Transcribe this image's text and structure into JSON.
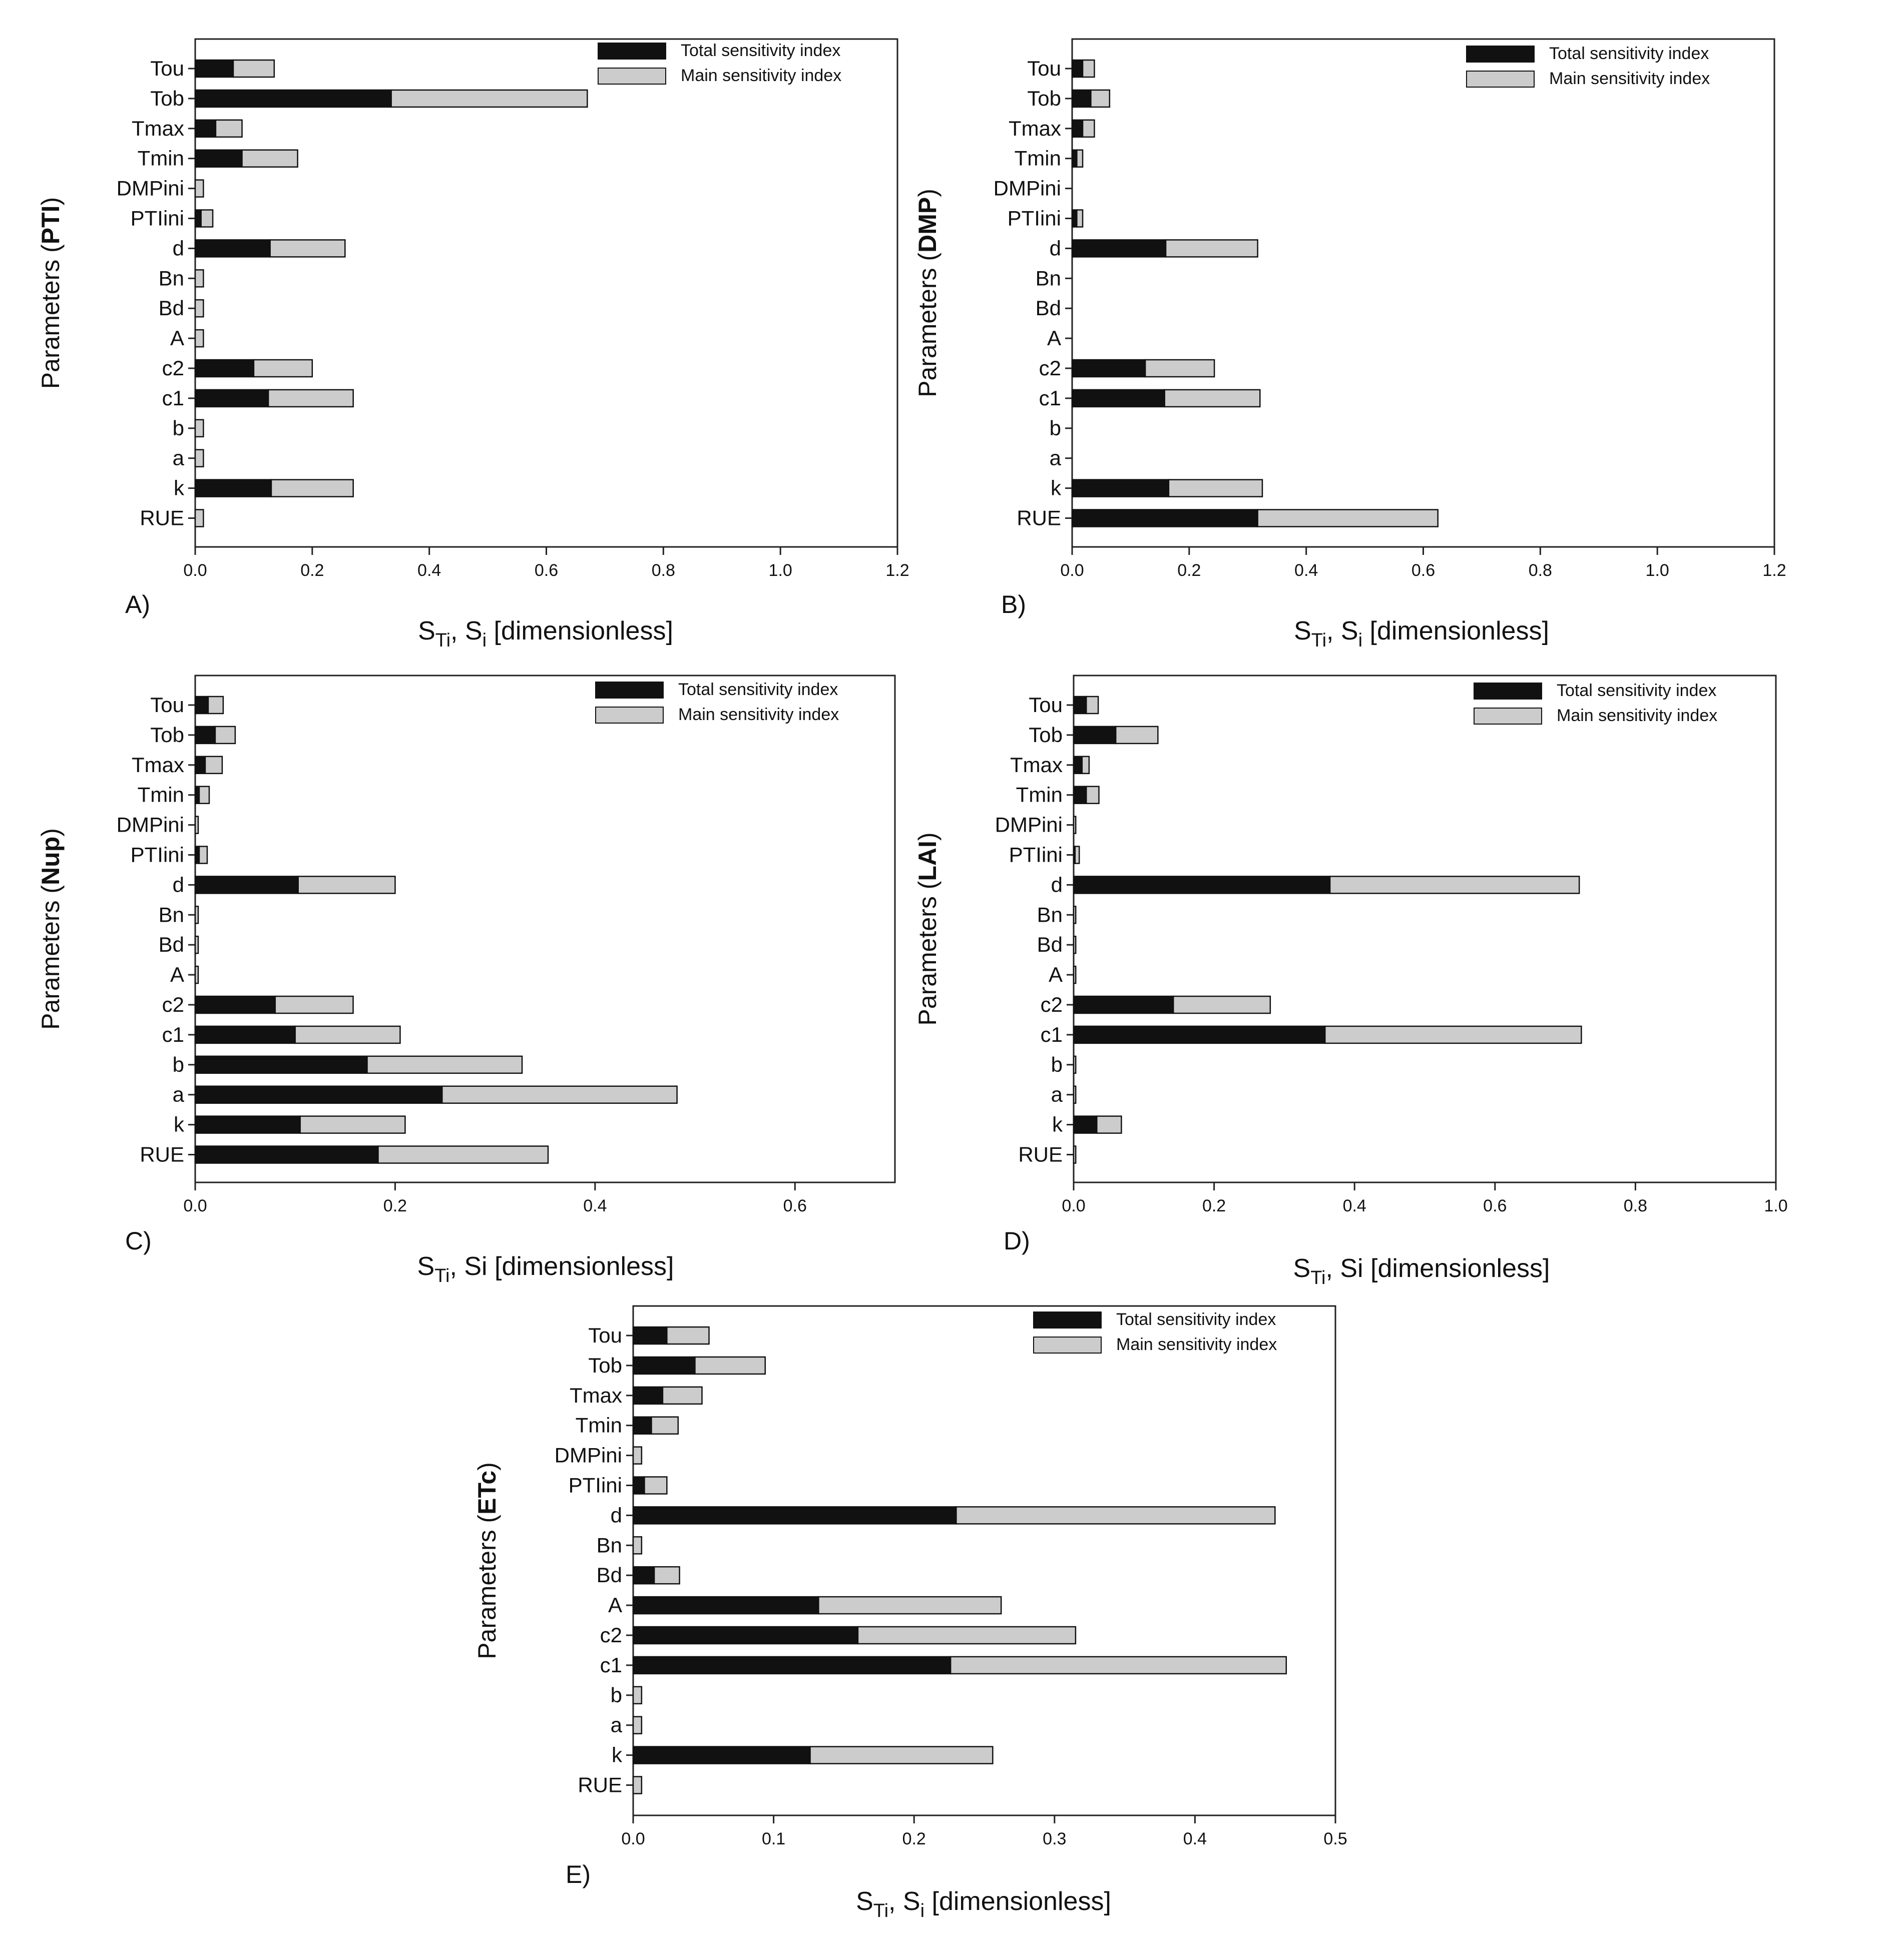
{
  "colors": {
    "total": "#111111",
    "main": "#cccccc",
    "frame": "#222222"
  },
  "legend": {
    "total": "Total sensitivity index",
    "main": "Main sensitivity index"
  },
  "chart_data": [
    {
      "type": "bar",
      "orientation": "horizontal",
      "stacked": true,
      "panel_label": "A)",
      "ylabel_prefix": "Parameters (",
      "ylabel_bold": "PTI",
      "ylabel_suffix": ")",
      "xlabel": {
        "main": "S",
        "sub1": "Ti",
        "mid": ", S",
        "sub2": "i",
        "rest": " [dimensionless]"
      },
      "xlim": [
        0,
        1.2
      ],
      "xticks": [
        "0.0",
        "0.2",
        "0.4",
        "0.6",
        "0.8",
        "1.0",
        "1.2"
      ],
      "xtick_values": [
        0,
        0.2,
        0.4,
        0.6,
        0.8,
        1.0,
        1.2
      ],
      "categories": [
        "Tou",
        "Tob",
        "Tmax",
        "Tmin",
        "DMPini",
        "PTIini",
        "d",
        "Bn",
        "Bd",
        "A",
        "c2",
        "c1",
        "b",
        "a",
        "k",
        "RUE"
      ],
      "series": [
        {
          "name": "Total sensitivity index",
          "values": [
            0.065,
            0.335,
            0.035,
            0.08,
            0.0,
            0.01,
            0.128,
            0.0,
            0.0,
            0.0,
            0.1,
            0.125,
            0.0,
            0.0,
            0.13,
            0.0
          ]
        },
        {
          "name": "Main sensitivity index",
          "values": [
            0.07,
            0.335,
            0.045,
            0.095,
            0.014,
            0.02,
            0.128,
            0.014,
            0.014,
            0.014,
            0.1,
            0.145,
            0.014,
            0.014,
            0.14,
            0.014
          ]
        }
      ]
    },
    {
      "type": "bar",
      "orientation": "horizontal",
      "stacked": true,
      "panel_label": "B)",
      "ylabel_prefix": "Parameters (",
      "ylabel_bold": "DMP",
      "ylabel_suffix": ")",
      "xlabel": {
        "main": "S",
        "sub1": "Ti",
        "mid": ", S",
        "sub2": "i",
        "rest": " [dimensionless]"
      },
      "xlim": [
        0,
        1.2
      ],
      "xticks": [
        "0.0",
        "0.2",
        "0.4",
        "0.6",
        "0.8",
        "1.0",
        "1.2"
      ],
      "xtick_values": [
        0,
        0.2,
        0.4,
        0.6,
        0.8,
        1.0,
        1.2
      ],
      "categories": [
        "Tou",
        "Tob",
        "Tmax",
        "Tmin",
        "DMPini",
        "PTIini",
        "d",
        "Bn",
        "Bd",
        "A",
        "c2",
        "c1",
        "b",
        "a",
        "k",
        "RUE"
      ],
      "series": [
        {
          "name": "Total sensitivity index",
          "values": [
            0.018,
            0.032,
            0.018,
            0.008,
            0.0,
            0.008,
            0.16,
            0.0,
            0.0,
            0.0,
            0.125,
            0.158,
            0.0,
            0.0,
            0.165,
            0.317
          ]
        },
        {
          "name": "Main sensitivity index",
          "values": [
            0.02,
            0.032,
            0.02,
            0.01,
            0.0,
            0.01,
            0.157,
            0.0,
            0.0,
            0.0,
            0.118,
            0.163,
            0.0,
            0.0,
            0.16,
            0.308
          ]
        }
      ]
    },
    {
      "type": "bar",
      "orientation": "horizontal",
      "stacked": true,
      "panel_label": "C)",
      "ylabel_prefix": "Parameters (",
      "ylabel_bold": "Nup",
      "ylabel_suffix": ")",
      "xlabel": {
        "main": "S",
        "sub1": "Ti",
        "mid": ", Si",
        "sub2": "",
        "rest": " [dimensionless]"
      },
      "xlim": [
        0,
        0.7
      ],
      "xticks": [
        "0.0",
        "0.2",
        "0.4",
        "0.6"
      ],
      "xtick_values": [
        0,
        0.2,
        0.4,
        0.6
      ],
      "categories": [
        "Tou",
        "Tob",
        "Tmax",
        "Tmin",
        "DMPini",
        "PTIini",
        "d",
        "Bn",
        "Bd",
        "A",
        "c2",
        "c1",
        "b",
        "a",
        "k",
        "RUE"
      ],
      "series": [
        {
          "name": "Total sensitivity index",
          "values": [
            0.013,
            0.02,
            0.01,
            0.004,
            0.0,
            0.004,
            0.103,
            0.0,
            0.0,
            0.0,
            0.08,
            0.1,
            0.172,
            0.247,
            0.105,
            0.183
          ]
        },
        {
          "name": "Main sensitivity index",
          "values": [
            0.015,
            0.02,
            0.017,
            0.01,
            0.003,
            0.008,
            0.097,
            0.003,
            0.003,
            0.003,
            0.078,
            0.105,
            0.155,
            0.235,
            0.105,
            0.17
          ]
        }
      ]
    },
    {
      "type": "bar",
      "orientation": "horizontal",
      "stacked": true,
      "panel_label": "D)",
      "ylabel_prefix": "Parameters (",
      "ylabel_bold": "LAI",
      "ylabel_suffix": ")",
      "xlabel": {
        "main": "S",
        "sub1": "Ti",
        "mid": ", Si",
        "sub2": "",
        "rest": " [dimensionless]"
      },
      "xlim": [
        0,
        1.0
      ],
      "xticks": [
        "0.0",
        "0.2",
        "0.4",
        "0.6",
        "0.8",
        "1.0"
      ],
      "xtick_values": [
        0,
        0.2,
        0.4,
        0.6,
        0.8,
        1.0
      ],
      "categories": [
        "Tou",
        "Tob",
        "Tmax",
        "Tmin",
        "DMPini",
        "PTIini",
        "d",
        "Bn",
        "Bd",
        "A",
        "c2",
        "c1",
        "b",
        "a",
        "k",
        "RUE"
      ],
      "series": [
        {
          "name": "Total sensitivity index",
          "values": [
            0.018,
            0.06,
            0.012,
            0.018,
            0.0,
            0.002,
            0.365,
            0.0,
            0.0,
            0.0,
            0.142,
            0.358,
            0.0,
            0.0,
            0.033,
            0.0
          ]
        },
        {
          "name": "Main sensitivity index",
          "values": [
            0.017,
            0.06,
            0.01,
            0.018,
            0.003,
            0.006,
            0.355,
            0.003,
            0.003,
            0.003,
            0.138,
            0.365,
            0.003,
            0.003,
            0.035,
            0.003
          ]
        }
      ]
    },
    {
      "type": "bar",
      "orientation": "horizontal",
      "stacked": true,
      "panel_label": "E)",
      "ylabel_prefix": "Parameters (",
      "ylabel_bold": "ETc",
      "ylabel_suffix": ")",
      "xlabel": {
        "main": "S",
        "sub1": "Ti",
        "mid": ", S",
        "sub2": "i",
        "rest": " [dimensionless]"
      },
      "xlim": [
        0,
        0.5
      ],
      "xticks": [
        "0.0",
        "0.1",
        "0.2",
        "0.3",
        "0.4",
        "0.5"
      ],
      "xtick_values": [
        0,
        0.1,
        0.2,
        0.3,
        0.4,
        0.5
      ],
      "categories": [
        "Tou",
        "Tob",
        "Tmax",
        "Tmin",
        "DMPini",
        "PTIini",
        "d",
        "Bn",
        "Bd",
        "A",
        "c2",
        "c1",
        "b",
        "a",
        "k",
        "RUE"
      ],
      "series": [
        {
          "name": "Total sensitivity index",
          "values": [
            0.024,
            0.044,
            0.021,
            0.013,
            0.0,
            0.008,
            0.23,
            0.0,
            0.015,
            0.132,
            0.16,
            0.226,
            0.0,
            0.0,
            0.126,
            0.0
          ]
        },
        {
          "name": "Main sensitivity index",
          "values": [
            0.03,
            0.05,
            0.028,
            0.019,
            0.006,
            0.016,
            0.227,
            0.006,
            0.018,
            0.13,
            0.155,
            0.239,
            0.006,
            0.006,
            0.13,
            0.006
          ]
        }
      ]
    }
  ]
}
